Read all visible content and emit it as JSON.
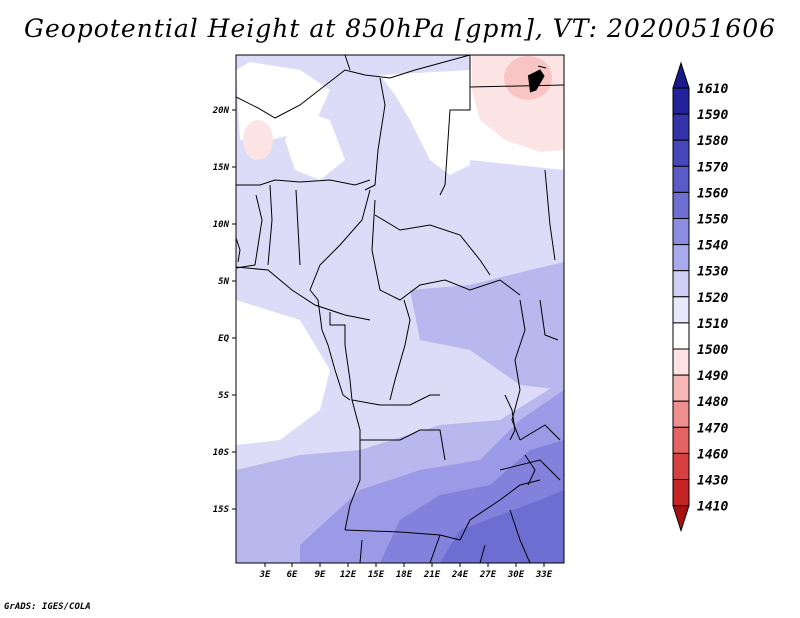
{
  "title": "Geopotential Height at 850hPa [gpm], VT: 2020051606",
  "footer": "GrADS: IGES/COLA",
  "map": {
    "x_ticks": [
      "3E",
      "6E",
      "9E",
      "12E",
      "15E",
      "18E",
      "21E",
      "24E",
      "27E",
      "30E",
      "33E"
    ],
    "y_ticks": [
      "20N",
      "15N",
      "10N",
      "5N",
      "EQ",
      "5S",
      "10S",
      "15S"
    ]
  },
  "colorbar": {
    "levels": [
      "1610",
      "1590",
      "1580",
      "1570",
      "1560",
      "1550",
      "1540",
      "1530",
      "1520",
      "1510",
      "1500",
      "1490",
      "1480",
      "1470",
      "1460",
      "1430",
      "1410"
    ],
    "colors": [
      "#1a1a8a",
      "#22229a",
      "#3333aa",
      "#4747bb",
      "#5b5bc8",
      "#6f6fd2",
      "#8c8ce0",
      "#aaaaee",
      "#cfcff6",
      "#e8e8fc",
      "#ffffff",
      "#fde3e3",
      "#f7b7b7",
      "#ef8f8f",
      "#e46464",
      "#d64040",
      "#c42424",
      "#a81010"
    ]
  }
}
